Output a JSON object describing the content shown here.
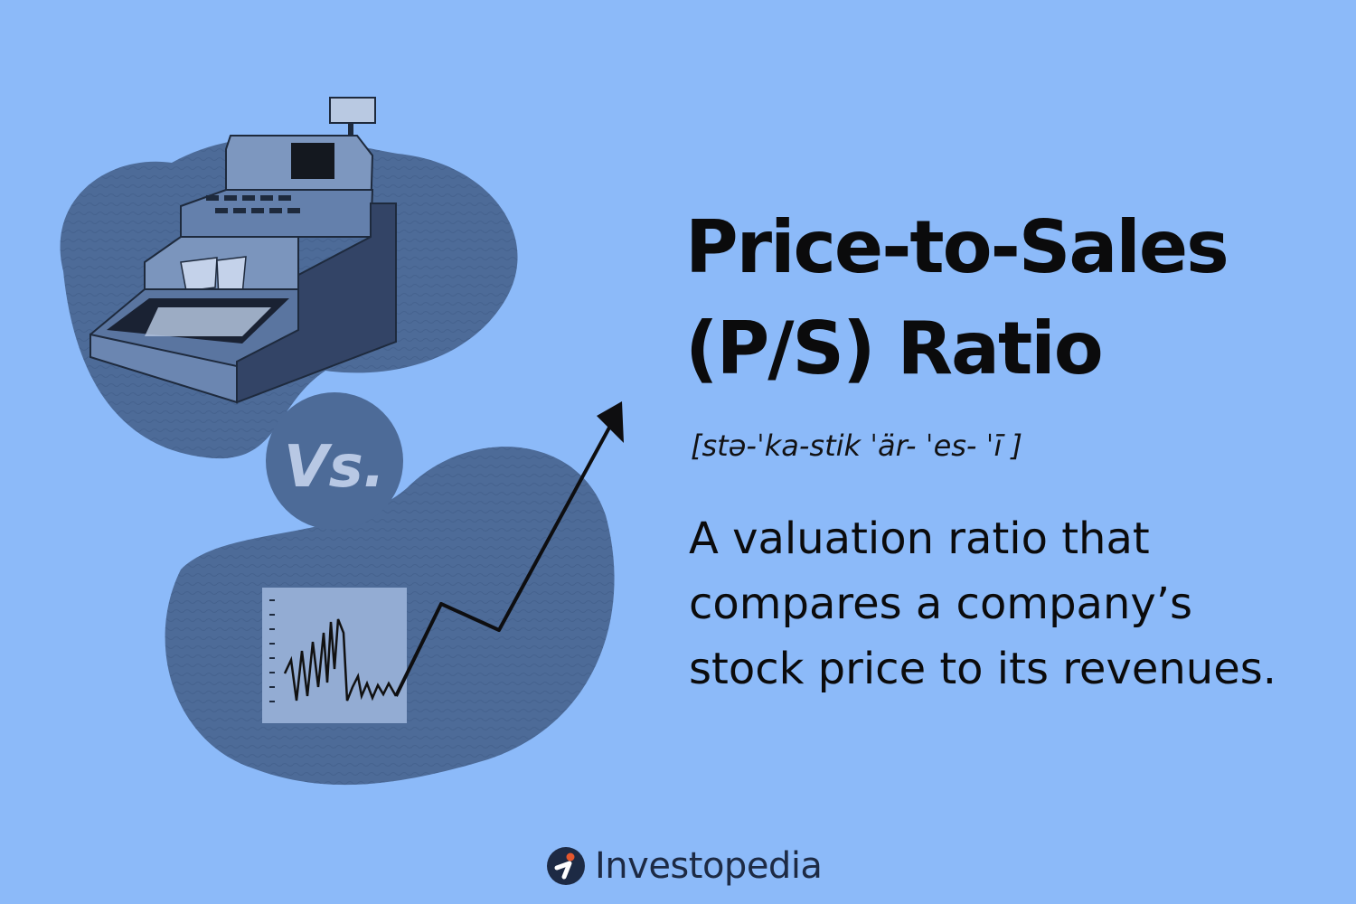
{
  "title": {
    "line1": "Price-to-Sales",
    "line2": "(P/S) Ratio"
  },
  "pronunciation": "[stə-ˈka-stik ˈär- ˈes- ˈī ]",
  "definition": {
    "line1": "A valuation ratio that",
    "line2": "compares a company’s",
    "line3": "stock price to its revenues."
  },
  "illustration": {
    "vs_label": "Vs.",
    "icons": [
      "cash-register-icon",
      "stock-chart-icon",
      "upward-arrow-icon"
    ]
  },
  "brand": {
    "name": "Investopedia",
    "logo_icon": "investopedia-logo-icon"
  },
  "colors": {
    "background": "#8cbaf9",
    "blob": "#4d6b98",
    "text": "#0b0b0c",
    "accent": "#e4572e"
  }
}
